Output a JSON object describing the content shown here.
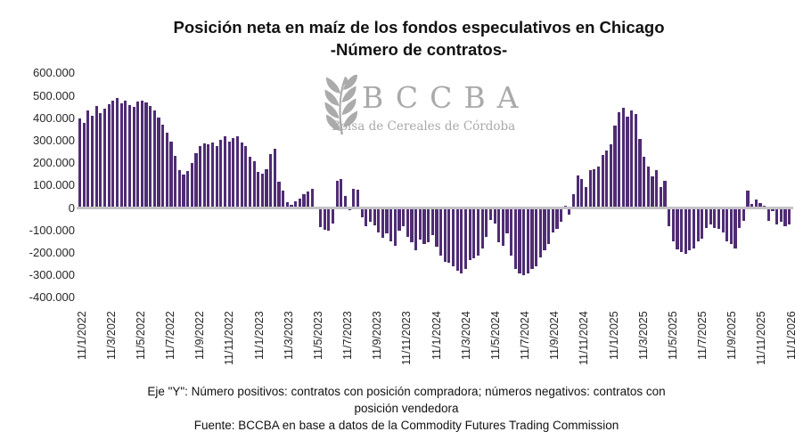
{
  "title": {
    "line1": "Posición neta en maíz de los fondos especulativos en Chicago",
    "line2": "-Número de contratos-"
  },
  "watermark": {
    "acronym": "BCCBA",
    "subtitle": "Bolsa de Cereales de Córdoba",
    "color": "#a9a9a9"
  },
  "footer": {
    "axis_note_line1": "Eje \"Y\": Número positivos: contratos con posición compradora; números negativos: contratos con",
    "axis_note_line2": "posición vendedora",
    "source": "Fuente: BCCBA en base a datos de la Commodity Futures Trading Commission"
  },
  "chart_data": {
    "type": "bar",
    "title": "Posición neta en maíz de los fondos especulativos en Chicago -Número de contratos-",
    "ylabel": "",
    "xlabel": "",
    "ylim": [
      -400000,
      600000
    ],
    "grid": false,
    "bar_color": "#4F2C74",
    "zero_line_color": "#C3C2C6",
    "y_tick_values": [
      600000,
      500000,
      400000,
      300000,
      200000,
      100000,
      0,
      -100000,
      -200000,
      -300000,
      -400000
    ],
    "y_tick_labels": [
      "600.000",
      "500.000",
      "400.000",
      "300.000",
      "200.000",
      "100.000",
      "0",
      "-100.000",
      "-200.000",
      "-300.000",
      "-400.000"
    ],
    "x_tick_labels": [
      "11/1/2022",
      "11/3/2022",
      "11/5/2022",
      "11/7/2022",
      "11/9/2022",
      "11/11/2022",
      "11/1/2023",
      "11/3/2023",
      "11/5/2023",
      "11/7/2023",
      "11/9/2023",
      "11/11/2023",
      "11/1/2024",
      "11/3/2024",
      "11/5/2024",
      "11/7/2024",
      "11/9/2024",
      "11/11/2024",
      "11/1/2025",
      "11/3/2025",
      "11/5/2025",
      "11/7/2025",
      "11/9/2025",
      "11/11/2025",
      "11/1/2026"
    ],
    "frequency": "weekly",
    "values": [
      400000,
      378000,
      434000,
      412000,
      455000,
      422000,
      442000,
      462000,
      478000,
      490000,
      468000,
      480000,
      458000,
      452000,
      476000,
      480000,
      470000,
      455000,
      433000,
      402000,
      372000,
      335000,
      296000,
      232000,
      168000,
      150000,
      166000,
      200000,
      246000,
      274000,
      288000,
      284000,
      293000,
      276000,
      303000,
      318000,
      297000,
      310000,
      318000,
      290000,
      276000,
      230000,
      207000,
      160000,
      152000,
      174000,
      242000,
      262000,
      118000,
      76000,
      24000,
      14000,
      28000,
      42000,
      60000,
      74000,
      86000,
      5000,
      -86000,
      -96000,
      -102000,
      -70000,
      120000,
      130000,
      55000,
      -10000,
      85000,
      82000,
      -43000,
      -82000,
      -63000,
      -78000,
      -109000,
      -133000,
      -114000,
      -148000,
      -167000,
      -102000,
      -82000,
      -128000,
      -153000,
      -187000,
      -141000,
      -161000,
      -153000,
      -122000,
      -173000,
      -212000,
      -239000,
      -246000,
      -259000,
      -278000,
      -290000,
      -271000,
      -231000,
      -226000,
      -212000,
      -180000,
      -128000,
      -55000,
      -69000,
      -153000,
      -167000,
      -114000,
      -212000,
      -271000,
      -290000,
      -298000,
      -290000,
      -271000,
      -259000,
      -220000,
      -187000,
      -161000,
      -109000,
      -94000,
      -63000,
      8000,
      -30000,
      60000,
      145000,
      130000,
      95000,
      170000,
      172000,
      185000,
      238000,
      255000,
      285000,
      368000,
      428000,
      448000,
      408000,
      435000,
      417000,
      306000,
      227000,
      185000,
      141000,
      170000,
      94000,
      120000,
      -82000,
      -150000,
      -185000,
      -195000,
      -205000,
      -190000,
      -180000,
      -150000,
      -135000,
      -90000,
      -75000,
      -89000,
      -95000,
      -109000,
      -148000,
      -161000,
      -180000,
      -89000,
      -56000,
      77000,
      16000,
      38000,
      22000,
      8000,
      -56000,
      -12000,
      -72000,
      -63000,
      -80000,
      -72000
    ]
  }
}
